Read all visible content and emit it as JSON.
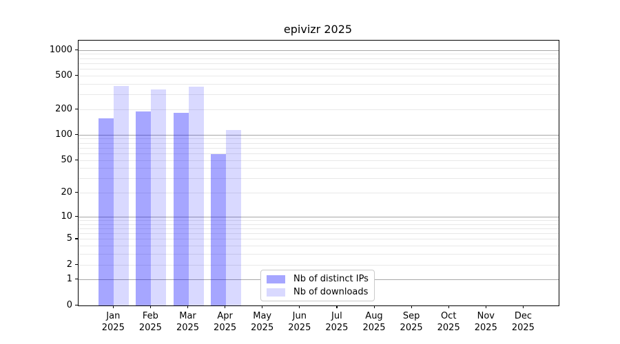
{
  "chart_data": {
    "type": "bar",
    "title": "epivizr 2025",
    "yscale": "log1p",
    "categories": [
      "Jan",
      "Feb",
      "Mar",
      "Apr",
      "May",
      "Jun",
      "Jul",
      "Aug",
      "Sep",
      "Oct",
      "Nov",
      "Dec"
    ],
    "year_label": "2025",
    "series": [
      {
        "name": "Nb of distinct IPs",
        "color": "rgba(0,0,255,0.35)",
        "color_over_white": "#a6a6ff",
        "values": [
          157,
          190,
          182,
          59,
          0,
          0,
          0,
          0,
          0,
          0,
          0,
          0
        ]
      },
      {
        "name": "Nb of downloads",
        "color": "rgba(0,0,255,0.15)",
        "color_over_white": "#d9d9ff",
        "values": [
          380,
          350,
          375,
          115,
          0,
          0,
          0,
          0,
          0,
          0,
          0,
          0
        ]
      }
    ],
    "y_ticks": [
      0,
      1,
      2,
      5,
      10,
      20,
      50,
      100,
      200,
      500,
      1000
    ],
    "ylim": [
      0,
      1305
    ],
    "grid": {
      "orientation": "horizontal",
      "major_values": [
        1,
        10,
        100,
        1000
      ],
      "minor_rule": "multiples 2-9 of each decade",
      "major_color": "#a6a6a6",
      "minor_color": "#e8e8e8"
    },
    "legend": {
      "position": "inside lower center",
      "border_color": "#c9c9c9",
      "background": "#ffffff"
    },
    "axis_color": "#000000",
    "background": "#ffffff"
  }
}
